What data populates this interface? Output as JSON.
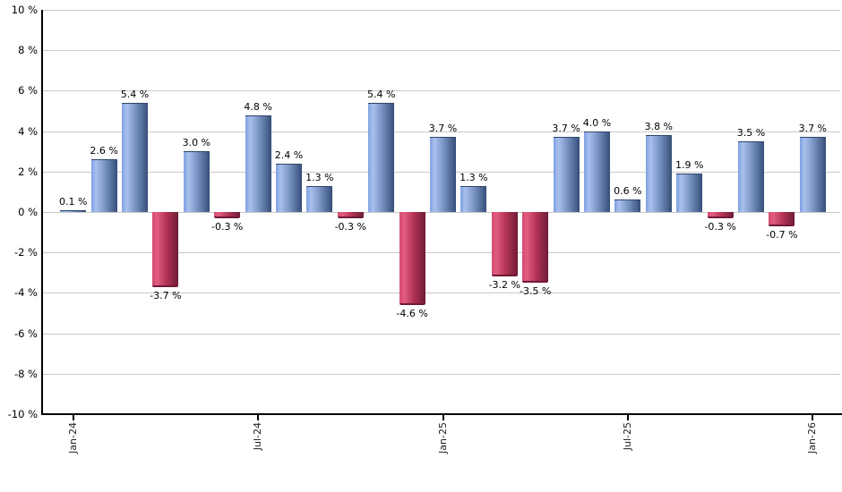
{
  "chart_data": {
    "type": "bar",
    "title": "",
    "xlabel": "",
    "ylabel": "",
    "values": [
      0.1,
      2.6,
      5.4,
      -3.7,
      3.0,
      -0.3,
      4.8,
      2.4,
      1.3,
      -0.3,
      5.4,
      -4.6,
      3.7,
      1.3,
      -3.2,
      -3.5,
      3.7,
      4.0,
      0.6,
      3.8,
      1.9,
      -0.3,
      3.5,
      -0.7,
      3.7
    ],
    "bar_labels": [
      "0.1 %",
      "2.6 %",
      "5.4 %",
      "-3.7 %",
      "3.0 %",
      "-0.3 %",
      "4.8 %",
      "2.4 %",
      "1.3 %",
      "-0.3 %",
      "5.4 %",
      "-4.6 %",
      "3.7 %",
      "1.3 %",
      "-3.2 %",
      "-3.5 %",
      "3.7 %",
      "4.0 %",
      "0.6 %",
      "3.8 %",
      "1.9 %",
      "-0.3 %",
      "3.5 %",
      "-0.7 %",
      "3.7 %"
    ],
    "x_tick_labels": [
      "Jan-24",
      "Jul-24",
      "Jan-25",
      "Jul-25",
      "Jan-26"
    ],
    "x_tick_indices": [
      0,
      6,
      12,
      18,
      24
    ],
    "y_tick_labels": [
      "10 %",
      "8 %",
      "6 %",
      "4 %",
      "2 %",
      "0 %",
      "-2 %",
      "-4 %",
      "-6 %",
      "-8 %",
      "-10 %"
    ],
    "y_tick_values": [
      10,
      8,
      6,
      4,
      2,
      0,
      -2,
      -4,
      -6,
      -8,
      -10
    ],
    "ylim": [
      -10,
      10
    ],
    "grid": true,
    "legend": "none",
    "colors": {
      "positive_gradient": [
        "#7da0e2",
        "#a9c0ee",
        "#7590c0",
        "#364e78"
      ],
      "negative_gradient": [
        "#d44a70",
        "#e25c80",
        "#b23356",
        "#6f1b35"
      ],
      "positive_cap": "#2f4569",
      "negative_cap": "#701b35",
      "gridline": "#c9c9c9",
      "axis": "#000000",
      "label": "#000000",
      "background": "#ffffff"
    }
  }
}
